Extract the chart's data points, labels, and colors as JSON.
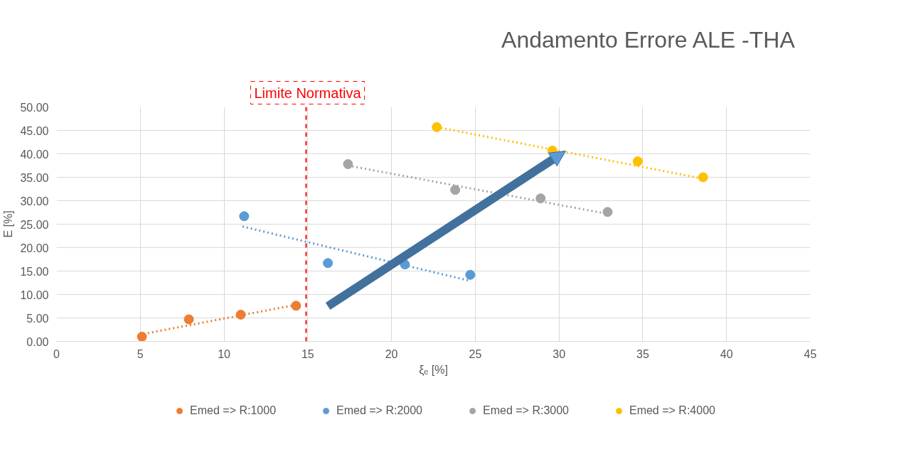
{
  "chart_data": {
    "type": "scatter",
    "title": "Andamento Errore ALE -THA",
    "xlabel": "ξₑ [%]",
    "ylabel": "E [%]",
    "xlim": [
      0,
      45
    ],
    "xticks": [
      0,
      5,
      10,
      15,
      20,
      25,
      30,
      35,
      40,
      45
    ],
    "ylim": [
      0,
      50
    ],
    "yticks": [
      {
        "value": 0,
        "label": "0.00"
      },
      {
        "value": 5,
        "label": "5.00"
      },
      {
        "value": 10,
        "label": "10.00"
      },
      {
        "value": 15,
        "label": "15.00"
      },
      {
        "value": 20,
        "label": "20.00"
      },
      {
        "value": 25,
        "label": "25.00"
      },
      {
        "value": 30,
        "label": "30.00"
      },
      {
        "value": 35,
        "label": "35.00"
      },
      {
        "value": 40,
        "label": "40.00"
      },
      {
        "value": 45,
        "label": "45.00"
      },
      {
        "value": 50,
        "label": "50.00"
      }
    ],
    "grid": true,
    "legend": "bottom",
    "marker": "circle",
    "ref_lines": [
      {
        "axis": "x",
        "value": 14.9,
        "label": "Limite Normativa",
        "color": "#ff0000",
        "line_style": "dashed"
      }
    ],
    "series": [
      {
        "name": "Emed => R:1000",
        "color": "#ed7d31",
        "x": [
          5.1,
          7.9,
          11.0,
          14.3
        ],
        "values": [
          1.0,
          4.7,
          5.7,
          7.6
        ]
      },
      {
        "name": "Emed => R:2000",
        "color": "#5b9bd5",
        "x": [
          11.2,
          16.2,
          20.8,
          24.7
        ],
        "values": [
          26.7,
          16.7,
          16.4,
          14.2
        ]
      },
      {
        "name": "Emed => R:3000",
        "color": "#a5a5a5",
        "x": [
          17.4,
          23.8,
          28.9,
          32.9
        ],
        "values": [
          37.8,
          32.3,
          30.5,
          27.6
        ]
      },
      {
        "name": "Emed => R:4000",
        "color": "#ffc000",
        "x": [
          22.7,
          29.6,
          34.7,
          38.6
        ],
        "values": [
          45.7,
          40.7,
          38.4,
          35.0
        ]
      },
      {
        "type": "line",
        "marker": "none",
        "line_style": "dotted",
        "color": "#ed7d31",
        "x": [
          5.2,
          14.6
        ],
        "values": [
          1.6,
          8.0
        ]
      },
      {
        "type": "line",
        "marker": "none",
        "line_style": "dotted",
        "color": "#5b9bd5",
        "x": [
          11.1,
          24.7
        ],
        "values": [
          24.5,
          12.9
        ]
      },
      {
        "type": "line",
        "marker": "none",
        "line_style": "dotted",
        "color": "#a5a5a5",
        "x": [
          17.4,
          32.9
        ],
        "values": [
          37.5,
          27.2
        ]
      },
      {
        "type": "line",
        "marker": "none",
        "line_style": "dotted",
        "color": "#ffc000",
        "x": [
          22.7,
          38.6
        ],
        "values": [
          45.7,
          34.7
        ]
      }
    ]
  }
}
